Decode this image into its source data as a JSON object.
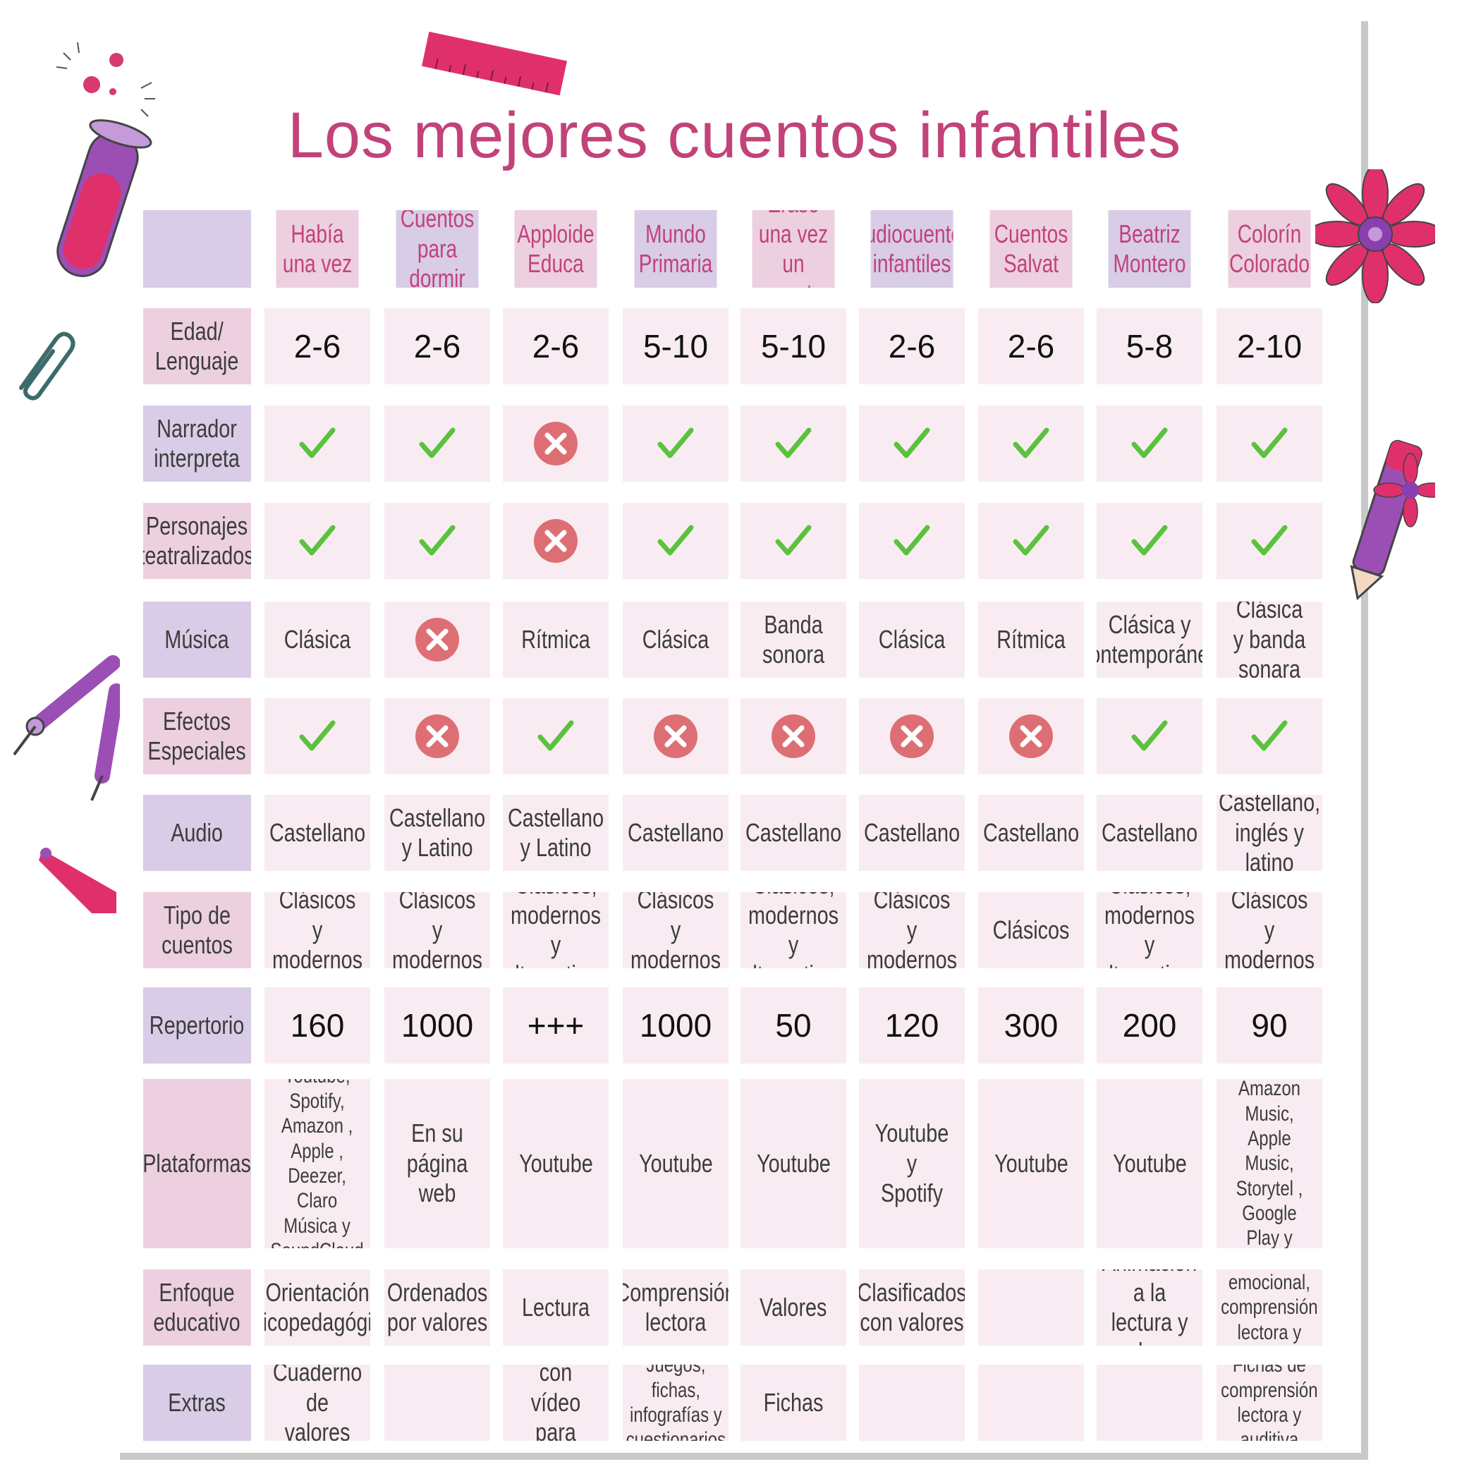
{
  "title": "Los mejores cuentos infantiles",
  "colors": {
    "pink_dark": "#c2427a",
    "cell_light": "#f8ecf2",
    "cell_pink": "#ecd0e0",
    "cell_lavender": "#d8cce6",
    "check_green": "#5ac23c",
    "cross_red": "#dd6f74"
  },
  "columns": [
    "Había una vez",
    "Cuentos para dormir",
    "Apploide Educa",
    "Mundo Primaria",
    "Érase una vez un cuento",
    "Audiocuentos infantiles",
    "Cuentos Salvat",
    "Beatriz Montero",
    "Colorín Colorado"
  ],
  "rows": [
    {
      "label": "Edad/ Lenguaje",
      "kind": "number",
      "values": [
        "2-6",
        "2-6",
        "2-6",
        "5-10",
        "5-10",
        "2-6",
        "2-6",
        "5-8",
        "2-10"
      ]
    },
    {
      "label": "Narrador interpreta",
      "kind": "icon",
      "values": [
        "check",
        "check",
        "cross",
        "check",
        "check",
        "check",
        "check",
        "check",
        "check"
      ]
    },
    {
      "label": "Personajes teatralizados",
      "kind": "icon",
      "values": [
        "check",
        "check",
        "cross",
        "check",
        "check",
        "check",
        "check",
        "check",
        "check"
      ]
    },
    {
      "label": "Música",
      "kind": "mixed",
      "values": [
        "Clásica",
        "cross",
        "Rítmica",
        "Clásica",
        "Banda sonora",
        "Clásica",
        "Rítmica",
        "Clásica y contemporánea",
        "Clásica y banda sonara"
      ]
    },
    {
      "label": "Efectos Especiales",
      "kind": "icon",
      "values": [
        "check",
        "cross",
        "check",
        "cross",
        "cross",
        "cross",
        "cross",
        "check",
        "check"
      ]
    },
    {
      "label": "Audio",
      "kind": "text",
      "values": [
        "Castellano",
        "Castellano y Latino",
        "Castellano y Latino",
        "Castellano",
        "Castellano",
        "Castellano",
        "Castellano",
        "Castellano",
        "Castellano, inglés y latino"
      ]
    },
    {
      "label": "Tipo de cuentos",
      "kind": "text",
      "values": [
        "Clásicos y modernos",
        "Clásicos y modernos",
        "Clásicos, modernos y alternativos",
        "Clásicos y modernos",
        "Clásicos, modernos y alternativos",
        "Clásicos y modernos",
        "Clásicos",
        "Clásicos, modernos y alternativos",
        "Clásicos y modernos"
      ]
    },
    {
      "label": "Repertorio",
      "kind": "number",
      "values": [
        "160",
        "1000",
        "+++",
        "1000",
        "50",
        "120",
        "300",
        "200",
        "90"
      ]
    },
    {
      "label": "Plataformas",
      "kind": "text",
      "values": [
        "Youtube, Spotify, Amazon , Apple , Deezer, Claro Música y SoundCloud",
        "En su página web",
        "Youtube",
        "Youtube",
        "Youtube",
        "Youtube y Spotify",
        "Youtube",
        "Youtube",
        "Spotify, Amazon Music, Apple Music, Storytel , Google Play y Audible"
      ]
    },
    {
      "label": "Enfoque educativo",
      "kind": "text",
      "values": [
        "Orientación psicopedagógica",
        "Ordenados por valores",
        "Lectura",
        "Comprensión lectora",
        "Valores",
        "Clasificados con valores",
        "",
        "Animación a la lectura y valores",
        "Educación emocional, comprensión lectora y valores"
      ]
    },
    {
      "label": "Extras",
      "kind": "text",
      "values": [
        "Cuaderno de valores",
        "",
        "Texto con vídeo para leer",
        "Juegos, fichas, infografías y cuestionarios",
        "Fichas",
        "",
        "",
        "",
        "Fichas de comprensión lectora y auditiva"
      ]
    }
  ]
}
